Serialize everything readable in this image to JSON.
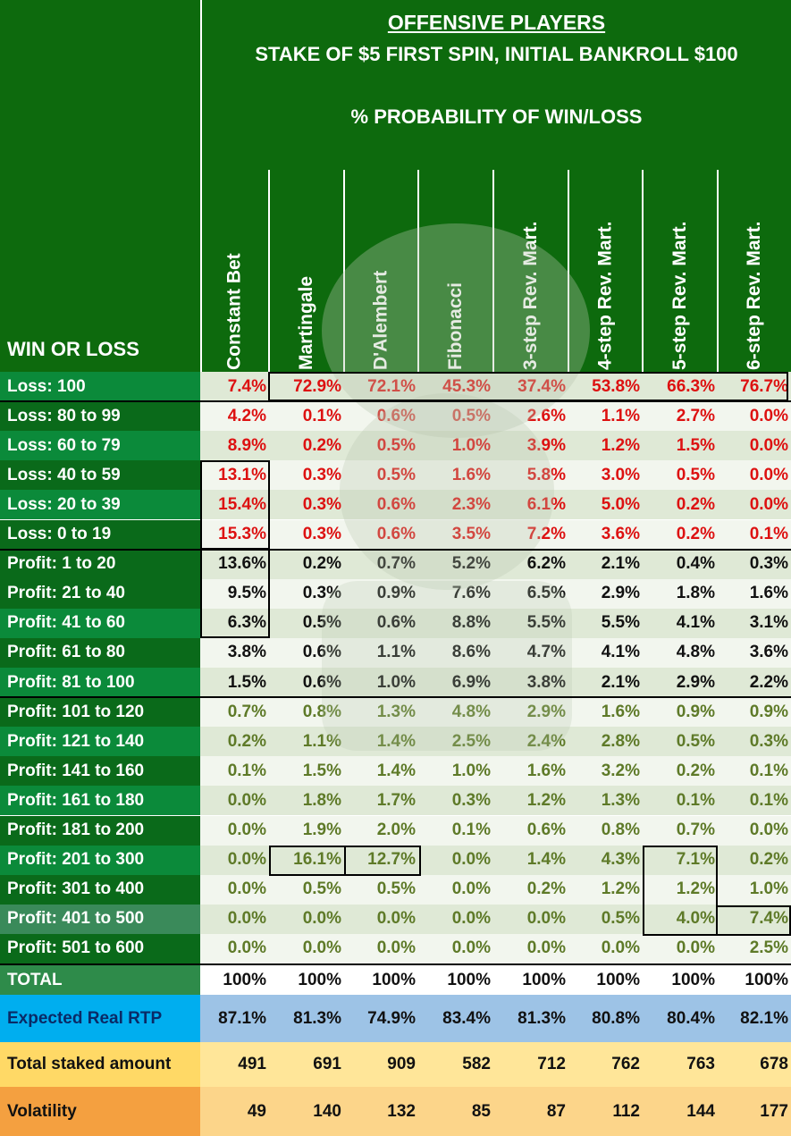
{
  "header": {
    "title": "OFFENSIVE PLAYERS",
    "subtitle": "STAKE OF $5 FIRST SPIN, INITIAL BANKROLL $100",
    "caption": "% PROBABILITY OF WIN/LOSS",
    "row_header": "WIN OR LOSS"
  },
  "columns": [
    "Constant Bet",
    "Martingale",
    "D'Alembert",
    "Fibonacci",
    "3-step Rev. Mart.",
    "4-step Rev. Mart.",
    "5-step Rev. Mart.",
    "6-step Rev. Mart."
  ],
  "rows": [
    {
      "label": "Loss: 100",
      "values": [
        "7.4%",
        "72.9%",
        "72.1%",
        "45.3%",
        "37.4%",
        "53.8%",
        "66.3%",
        "76.7%"
      ]
    },
    {
      "label": "Loss: 80 to 99",
      "values": [
        "4.2%",
        "0.1%",
        "0.6%",
        "0.5%",
        "2.6%",
        "1.1%",
        "2.7%",
        "0.0%"
      ]
    },
    {
      "label": "Loss: 60 to 79",
      "values": [
        "8.9%",
        "0.2%",
        "0.5%",
        "1.0%",
        "3.9%",
        "1.2%",
        "1.5%",
        "0.0%"
      ]
    },
    {
      "label": "Loss: 40 to 59",
      "values": [
        "13.1%",
        "0.3%",
        "0.5%",
        "1.6%",
        "5.8%",
        "3.0%",
        "0.5%",
        "0.0%"
      ]
    },
    {
      "label": "Loss: 20 to 39",
      "values": [
        "15.4%",
        "0.3%",
        "0.6%",
        "2.3%",
        "6.1%",
        "5.0%",
        "0.2%",
        "0.0%"
      ]
    },
    {
      "label": "Loss: 0 to 19",
      "values": [
        "15.3%",
        "0.3%",
        "0.6%",
        "3.5%",
        "7.2%",
        "3.6%",
        "0.2%",
        "0.1%"
      ]
    },
    {
      "label": "Profit: 1 to 20",
      "values": [
        "13.6%",
        "0.2%",
        "0.7%",
        "5.2%",
        "6.2%",
        "2.1%",
        "0.4%",
        "0.3%"
      ]
    },
    {
      "label": "Profit: 21 to 40",
      "values": [
        "9.5%",
        "0.3%",
        "0.9%",
        "7.6%",
        "6.5%",
        "2.9%",
        "1.8%",
        "1.6%"
      ]
    },
    {
      "label": "Profit: 41 to 60",
      "values": [
        "6.3%",
        "0.5%",
        "0.6%",
        "8.8%",
        "5.5%",
        "5.5%",
        "4.1%",
        "3.1%"
      ]
    },
    {
      "label": "Profit: 61 to 80",
      "values": [
        "3.8%",
        "0.6%",
        "1.1%",
        "8.6%",
        "4.7%",
        "4.1%",
        "4.8%",
        "3.6%"
      ]
    },
    {
      "label": "Profit: 81 to 100",
      "values": [
        "1.5%",
        "0.6%",
        "1.0%",
        "6.9%",
        "3.8%",
        "2.1%",
        "2.9%",
        "2.2%"
      ]
    },
    {
      "label": "Profit: 101 to 120",
      "values": [
        "0.7%",
        "0.8%",
        "1.3%",
        "4.8%",
        "2.9%",
        "1.6%",
        "0.9%",
        "0.9%"
      ]
    },
    {
      "label": "Profit: 121 to 140",
      "values": [
        "0.2%",
        "1.1%",
        "1.4%",
        "2.5%",
        "2.4%",
        "2.8%",
        "0.5%",
        "0.3%"
      ]
    },
    {
      "label": "Profit: 141 to 160",
      "values": [
        "0.1%",
        "1.5%",
        "1.4%",
        "1.0%",
        "1.6%",
        "3.2%",
        "0.2%",
        "0.1%"
      ]
    },
    {
      "label": "Profit: 161 to 180",
      "values": [
        "0.0%",
        "1.8%",
        "1.7%",
        "0.3%",
        "1.2%",
        "1.3%",
        "0.1%",
        "0.1%"
      ]
    },
    {
      "label": "Profit: 181 to 200",
      "values": [
        "0.0%",
        "1.9%",
        "2.0%",
        "0.1%",
        "0.6%",
        "0.8%",
        "0.7%",
        "0.0%"
      ]
    },
    {
      "label": "Profit: 201 to 300",
      "values": [
        "0.0%",
        "16.1%",
        "12.7%",
        "0.0%",
        "1.4%",
        "4.3%",
        "7.1%",
        "0.2%"
      ]
    },
    {
      "label": "Profit: 301 to 400",
      "values": [
        "0.0%",
        "0.5%",
        "0.5%",
        "0.0%",
        "0.2%",
        "1.2%",
        "1.2%",
        "1.0%"
      ]
    },
    {
      "label": "Profit: 401 to 500",
      "values": [
        "0.0%",
        "0.0%",
        "0.0%",
        "0.0%",
        "0.0%",
        "0.5%",
        "4.0%",
        "7.4%"
      ]
    },
    {
      "label": "Profit: 501 to 600",
      "values": [
        "0.0%",
        "0.0%",
        "0.0%",
        "0.0%",
        "0.0%",
        "0.0%",
        "0.0%",
        "2.5%"
      ]
    }
  ],
  "totals": {
    "total": {
      "label": "TOTAL",
      "values": [
        "100%",
        "100%",
        "100%",
        "100%",
        "100%",
        "100%",
        "100%",
        "100%"
      ]
    },
    "rtp": {
      "label": "Expected Real RTP",
      "values": [
        "87.1%",
        "81.3%",
        "74.9%",
        "83.4%",
        "81.3%",
        "80.8%",
        "80.4%",
        "82.1%"
      ]
    },
    "staked": {
      "label": "Total staked amount",
      "values": [
        "491",
        "691",
        "909",
        "582",
        "712",
        "762",
        "763",
        "678"
      ]
    },
    "volatility": {
      "label": "Volatility",
      "values": [
        "49",
        "140",
        "132",
        "85",
        "87",
        "112",
        "144",
        "177"
      ]
    }
  },
  "colors": {
    "header_green": "#0d6a0d",
    "loss_red": "#dd1111",
    "profit_black": "#111111",
    "profit_olive": "#5e7a28",
    "rtp_blue": "#00aeef",
    "rtp_cell": "#9dc3e6",
    "staked_label": "#ffd966",
    "staked_cell": "#ffe699",
    "volatility_label": "#f4a040",
    "volatility_cell": "#fcd58a"
  }
}
